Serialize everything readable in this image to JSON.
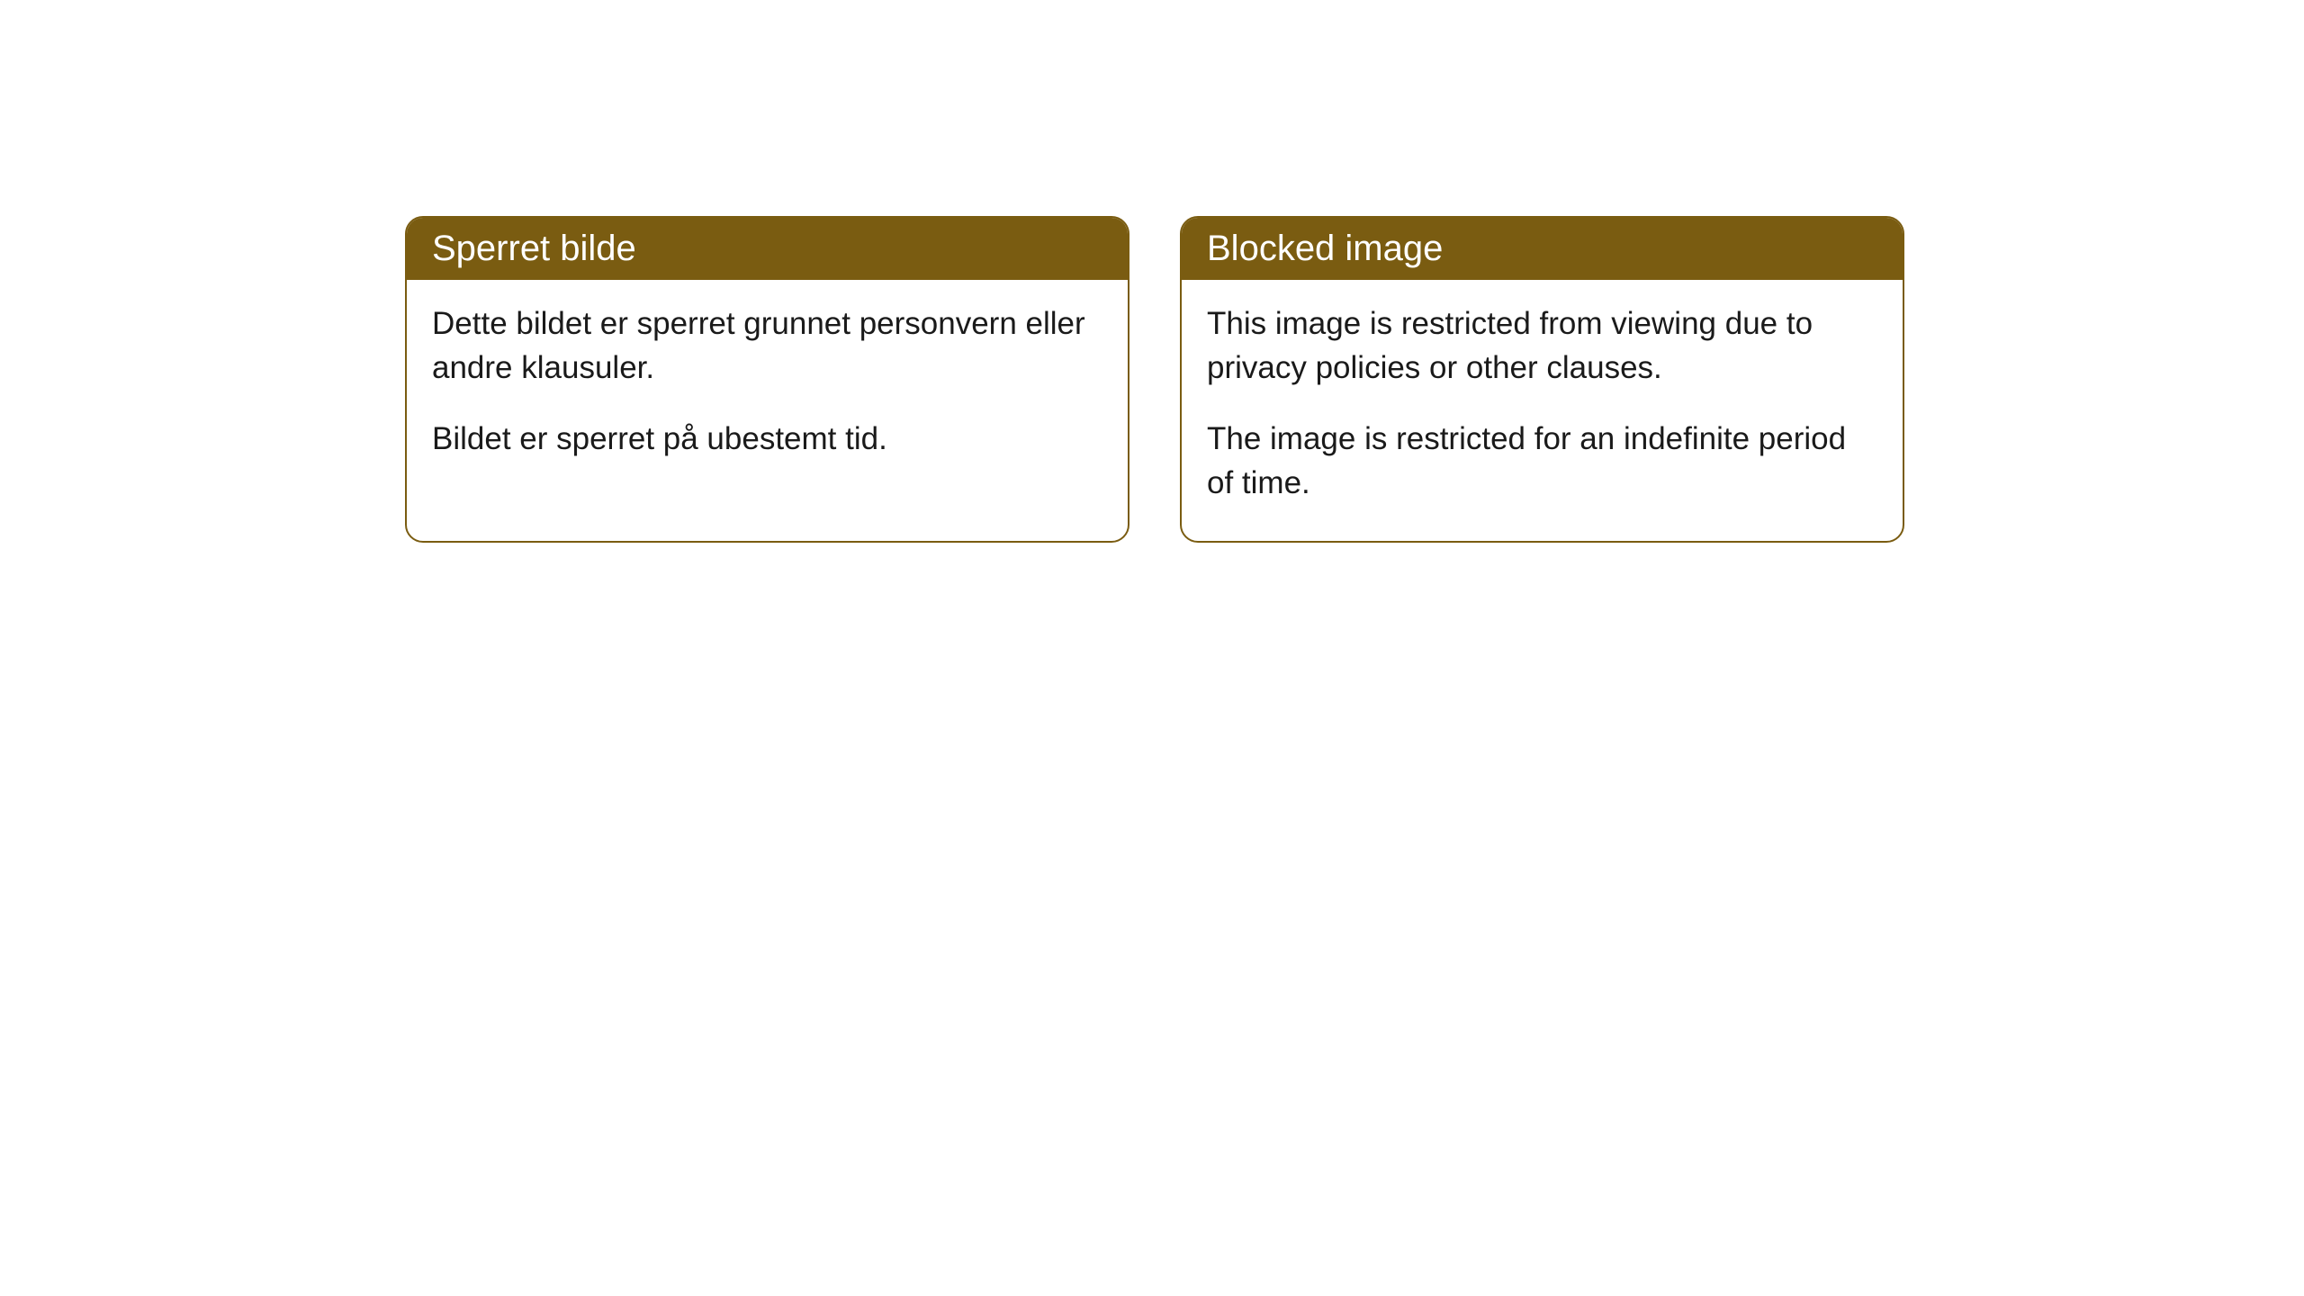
{
  "cards": [
    {
      "title": "Sperret bilde",
      "paragraph1": "Dette bildet er sperret grunnet personvern eller andre klausuler.",
      "paragraph2": "Bildet er sperret på ubestemt tid."
    },
    {
      "title": "Blocked image",
      "paragraph1": "This image is restricted from viewing due to privacy policies or other clauses.",
      "paragraph2": "The image is restricted for an indefinite period of time."
    }
  ],
  "styling": {
    "header_background": "#7a5c11",
    "header_text_color": "#ffffff",
    "card_border_color": "#7a5c11",
    "card_border_radius": 20,
    "body_text_color": "#1a1a1a",
    "page_background": "#ffffff",
    "title_fontsize": 40,
    "body_fontsize": 35
  }
}
